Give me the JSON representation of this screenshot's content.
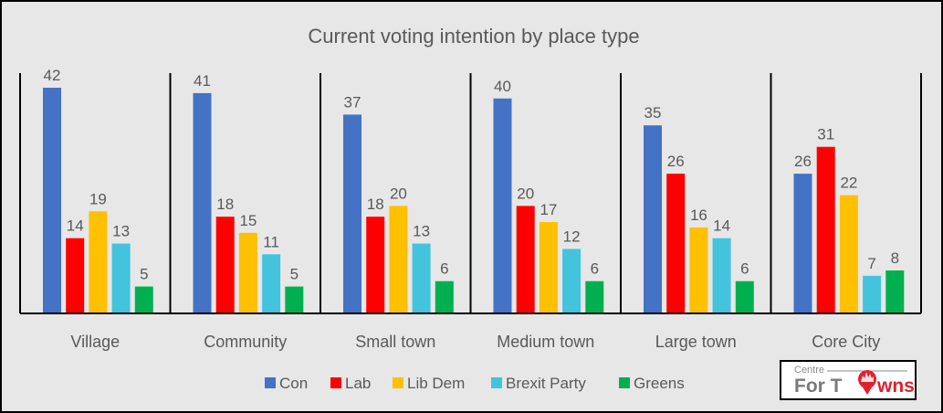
{
  "chart_data": {
    "type": "bar",
    "title": "Current voting intention by place type",
    "xlabel": "",
    "ylabel": "",
    "ylim": [
      0,
      45
    ],
    "grid": false,
    "legend_position": "bottom",
    "categories": [
      "Village",
      "Community",
      "Small town",
      "Medium town",
      "Large town",
      "Core City"
    ],
    "series": [
      {
        "name": "Con",
        "color": "#4472c4",
        "values": [
          42,
          41,
          37,
          40,
          35,
          26
        ]
      },
      {
        "name": "Lab",
        "color": "#ff0000",
        "values": [
          14,
          18,
          18,
          20,
          26,
          31
        ]
      },
      {
        "name": "Lib Dem",
        "color": "#ffc000",
        "values": [
          19,
          15,
          20,
          17,
          16,
          22
        ]
      },
      {
        "name": "Brexit Party",
        "color": "#43c3dc",
        "values": [
          13,
          11,
          13,
          12,
          14,
          7
        ]
      },
      {
        "name": "Greens",
        "color": "#00b050",
        "values": [
          5,
          5,
          6,
          6,
          6,
          8
        ]
      }
    ]
  },
  "logo": {
    "top_text": "Centre",
    "main_text_prefix": "For T",
    "main_text_suffix": "wns",
    "pin_color": "#e2202c"
  }
}
